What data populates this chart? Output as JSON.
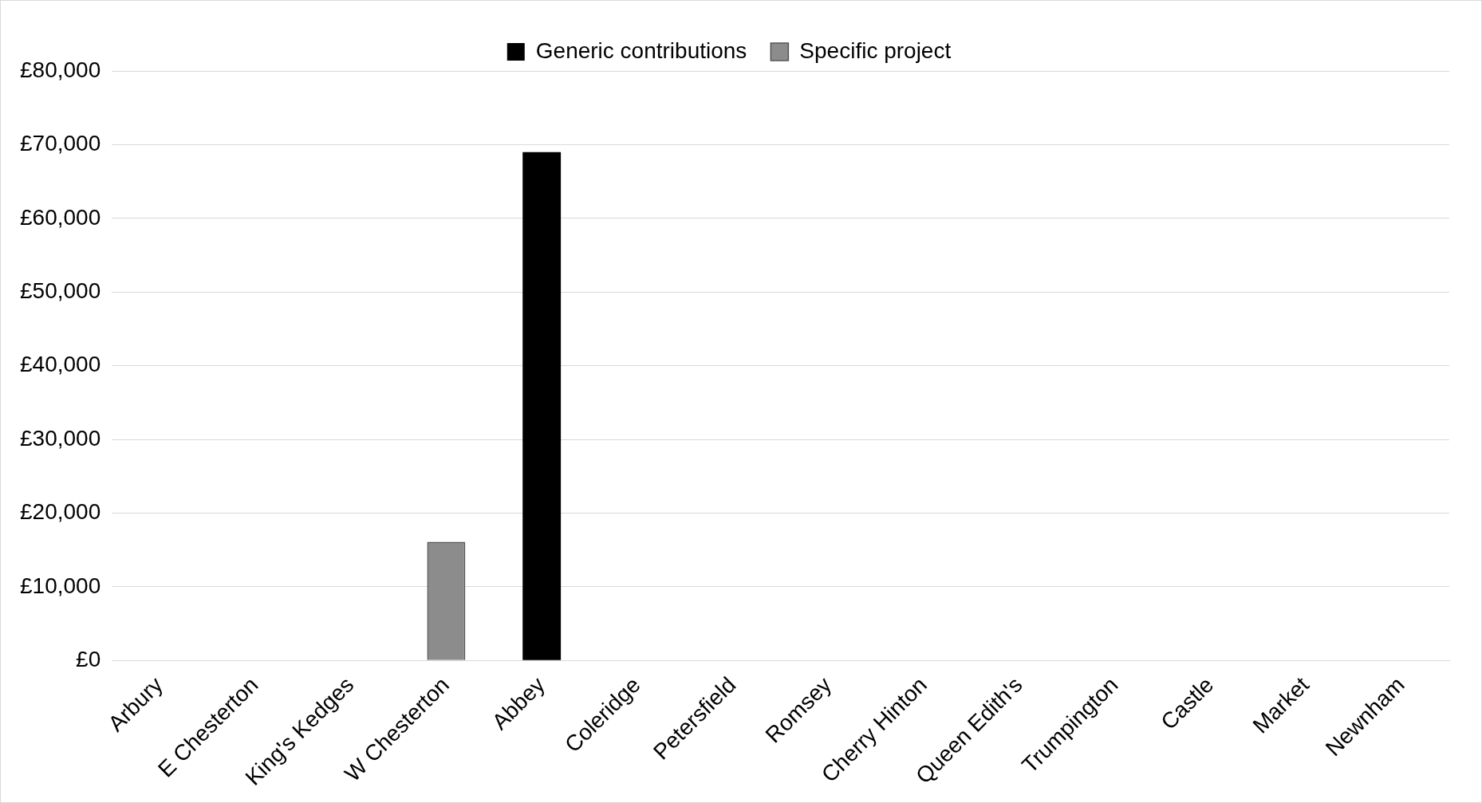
{
  "chart_data": {
    "type": "bar",
    "stacked": true,
    "categories": [
      "Arbury",
      "E Chesterton",
      "King's Kedges",
      "W Chesterton",
      "Abbey",
      "Coleridge",
      "Petersfield",
      "Romsey",
      "Cherry Hinton",
      "Queen Edith's",
      "Trumpington",
      "Castle",
      "Market",
      "Newnham"
    ],
    "series": [
      {
        "name": "Generic contributions",
        "color": "#000000",
        "values": [
          null,
          null,
          null,
          null,
          69000,
          null,
          null,
          null,
          null,
          null,
          null,
          null,
          null,
          null
        ]
      },
      {
        "name": "Specific project",
        "color": "#8c8c8c",
        "values": [
          null,
          null,
          null,
          16100,
          null,
          null,
          null,
          null,
          null,
          null,
          null,
          null,
          null,
          null
        ]
      }
    ],
    "ylim": [
      0,
      80000
    ],
    "yticks": [
      {
        "value": 0,
        "label": "£0"
      },
      {
        "value": 10000,
        "label": "£10,000"
      },
      {
        "value": 20000,
        "label": "£20,000"
      },
      {
        "value": 30000,
        "label": "£30,000"
      },
      {
        "value": 40000,
        "label": "£40,000"
      },
      {
        "value": 50000,
        "label": "£50,000"
      },
      {
        "value": 60000,
        "label": "£60,000"
      },
      {
        "value": 70000,
        "label": "£70,000"
      },
      {
        "value": 80000,
        "label": "£80,000"
      }
    ],
    "grid": "y",
    "legend": "top"
  }
}
